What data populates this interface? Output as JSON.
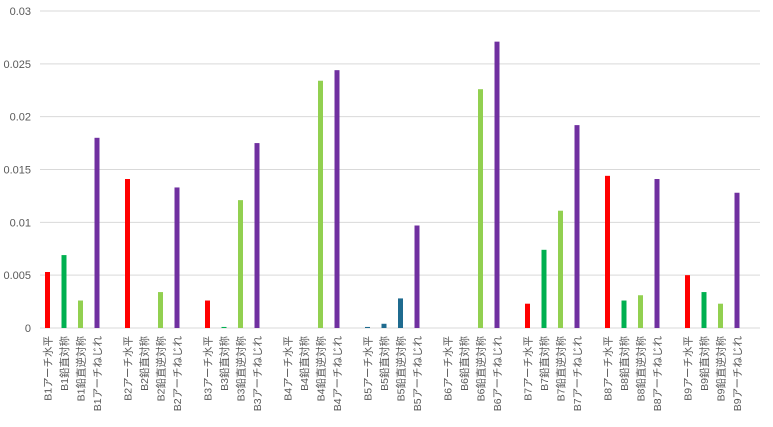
{
  "chart_data": {
    "type": "bar",
    "title": "",
    "xlabel": "",
    "ylabel": "",
    "ylim": [
      0,
      0.03
    ],
    "y_ticks": [
      "0",
      "0.005",
      "0.01",
      "0.015",
      "0.02",
      "0.025",
      "0.03"
    ],
    "grid": true,
    "legend": "none",
    "x_orientation": "rotated-vertical",
    "groups": [
      {
        "bars": [
          {
            "label": "B1アーチ水平",
            "value": 0.0053,
            "color": "#ff0000"
          },
          {
            "label": "B1鉛直対称",
            "value": 0.0069,
            "color": "#00b050"
          },
          {
            "label": "B1鉛直逆対称",
            "value": 0.0026,
            "color": "#92d050"
          },
          {
            "label": "B1アーチねじれ",
            "value": 0.018,
            "color": "#7030a0"
          }
        ]
      },
      {
        "bars": [
          {
            "label": "B2アーチ水平",
            "value": 0.0141,
            "color": "#ff0000"
          },
          {
            "label": "B2鉛直対称",
            "value": 0.0,
            "color": "#00b050"
          },
          {
            "label": "B2鉛直逆対称",
            "value": 0.0034,
            "color": "#92d050"
          },
          {
            "label": "B2アーチねじれ",
            "value": 0.0133,
            "color": "#7030a0"
          }
        ]
      },
      {
        "bars": [
          {
            "label": "B3アーチ水平",
            "value": 0.0026,
            "color": "#ff0000"
          },
          {
            "label": "B3鉛直対称",
            "value": 0.0001,
            "color": "#00b050"
          },
          {
            "label": "B3鉛直逆対称",
            "value": 0.0121,
            "color": "#92d050"
          },
          {
            "label": "B3アーチねじれ",
            "value": 0.0175,
            "color": "#7030a0"
          }
        ]
      },
      {
        "bars": [
          {
            "label": "B4アーチ水平",
            "value": 0.0,
            "color": "#ff0000"
          },
          {
            "label": "B4鉛直対称",
            "value": 0.0,
            "color": "#00b050"
          },
          {
            "label": "B4鉛直逆対称",
            "value": 0.0234,
            "color": "#92d050"
          },
          {
            "label": "B4アーチねじれ",
            "value": 0.0244,
            "color": "#7030a0"
          }
        ]
      },
      {
        "bars": [
          {
            "label": "B5アーチ水平",
            "value": 0.0001,
            "color": "#1f6b8f"
          },
          {
            "label": "B5鉛直対称",
            "value": 0.0004,
            "color": "#1f6b8f"
          },
          {
            "label": "B5鉛直逆対称",
            "value": 0.0028,
            "color": "#1f6b8f"
          },
          {
            "label": "B5アーチねじれ",
            "value": 0.0097,
            "color": "#7030a0"
          }
        ]
      },
      {
        "bars": [
          {
            "label": "B6アーチ水平",
            "value": 0.0,
            "color": "#ff0000"
          },
          {
            "label": "B6鉛直対称",
            "value": 0.0,
            "color": "#00b050"
          },
          {
            "label": "B6鉛直逆対称",
            "value": 0.0226,
            "color": "#92d050"
          },
          {
            "label": "B6アーチねじれ",
            "value": 0.0271,
            "color": "#7030a0"
          }
        ]
      },
      {
        "bars": [
          {
            "label": "B7アーチ水平",
            "value": 0.0023,
            "color": "#ff0000"
          },
          {
            "label": "B7鉛直対称",
            "value": 0.0074,
            "color": "#00b050"
          },
          {
            "label": "B7鉛直逆対称",
            "value": 0.0111,
            "color": "#92d050"
          },
          {
            "label": "B7アーチねじれ",
            "value": 0.0192,
            "color": "#7030a0"
          }
        ]
      },
      {
        "bars": [
          {
            "label": "B8アーチ水平",
            "value": 0.0144,
            "color": "#ff0000"
          },
          {
            "label": "B8鉛直対称",
            "value": 0.0026,
            "color": "#00b050"
          },
          {
            "label": "B8鉛直逆対称",
            "value": 0.0031,
            "color": "#92d050"
          },
          {
            "label": "B8アーチねじれ",
            "value": 0.0141,
            "color": "#7030a0"
          }
        ]
      },
      {
        "bars": [
          {
            "label": "B9アーチ水平",
            "value": 0.005,
            "color": "#ff0000"
          },
          {
            "label": "B9鉛直対称",
            "value": 0.0034,
            "color": "#00b050"
          },
          {
            "label": "B9鉛直逆対称",
            "value": 0.0023,
            "color": "#92d050"
          },
          {
            "label": "B9アーチねじれ",
            "value": 0.0128,
            "color": "#7030a0"
          }
        ]
      }
    ]
  }
}
